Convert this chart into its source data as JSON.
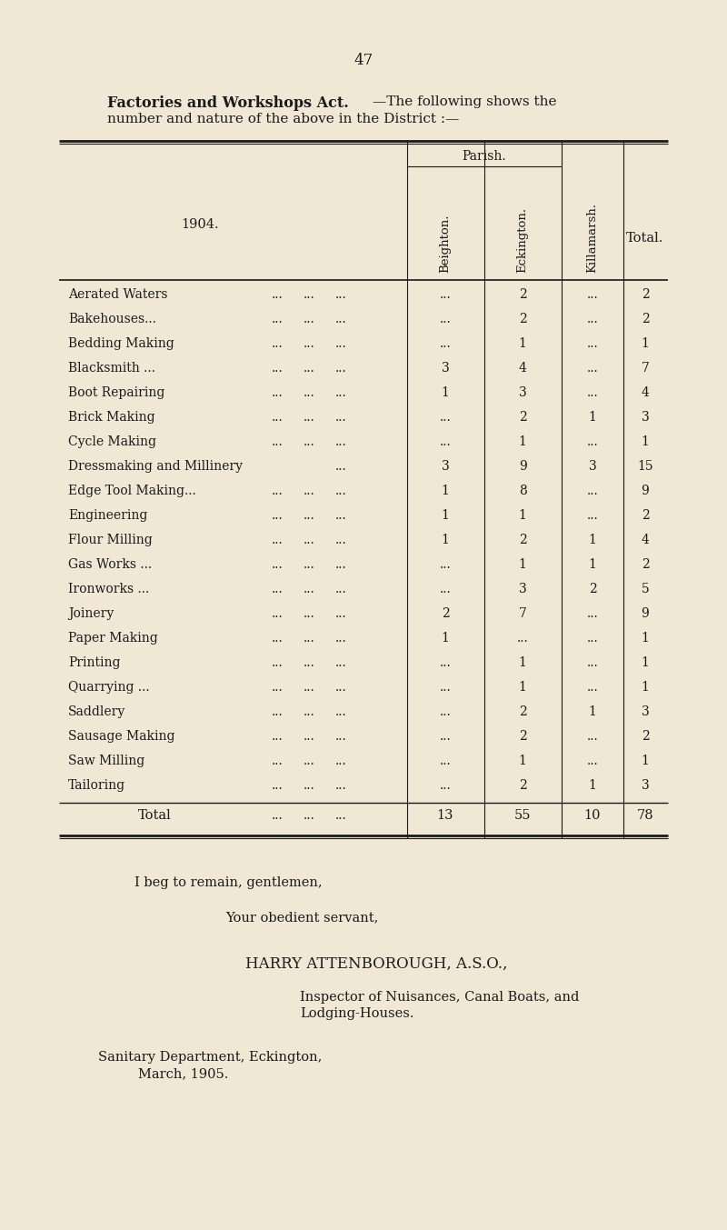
{
  "page_number": "47",
  "bg_color": "#f0e8d5",
  "text_color": "#1a1a1a",
  "title_bold": "Factories and Workshops Act.",
  "title_normal_1": "—The following shows the",
  "title_normal_2": "number and nature of the above in the District :—",
  "year_label": "1904.",
  "parish_label": "Parish.",
  "col_headers": [
    "Beighton.",
    "Eckington.",
    "Killamarsh."
  ],
  "total_header": "Total.",
  "rows": [
    {
      "label": "Aerated Waters",
      "dots": "... ... ...",
      "beighton": "",
      "eckington": "2",
      "killamarsh": "",
      "total": "2"
    },
    {
      "label": "Bakehouses...",
      "dots": "... ... ...",
      "beighton": "",
      "eckington": "2",
      "killamarsh": "",
      "total": "2"
    },
    {
      "label": "Bedding Making",
      "dots": "... ... ...",
      "beighton": "",
      "eckington": "1",
      "killamarsh": "",
      "total": "1"
    },
    {
      "label": "Blacksmith ...",
      "dots": "... ... ...",
      "beighton": "3",
      "eckington": "4",
      "killamarsh": "",
      "total": "7"
    },
    {
      "label": "Boot Repairing",
      "dots": "... ... ...",
      "beighton": "1",
      "eckington": "3",
      "killamarsh": "",
      "total": "4"
    },
    {
      "label": "Brick Making",
      "dots": "... ... ...",
      "beighton": "",
      "eckington": "2",
      "killamarsh": "1",
      "total": "3"
    },
    {
      "label": "Cycle Making",
      "dots": "... ... ...",
      "beighton": "",
      "eckington": "1",
      "killamarsh": "",
      "total": "1"
    },
    {
      "label": "Dressmaking and Millinery",
      "dots": "...",
      "beighton": "3",
      "eckington": "9",
      "killamarsh": "3",
      "total": "15"
    },
    {
      "label": "Edge Tool Making...",
      "dots": "... ... ...",
      "beighton": "1",
      "eckington": "8",
      "killamarsh": "",
      "total": "9"
    },
    {
      "label": "Engineering",
      "dots": "... ... ...",
      "beighton": "1",
      "eckington": "1",
      "killamarsh": "",
      "total": "2"
    },
    {
      "label": "Flour Milling",
      "dots": "... ... ...",
      "beighton": "1",
      "eckington": "2",
      "killamarsh": "1",
      "total": "4"
    },
    {
      "label": "Gas Works ...",
      "dots": "... ... ...",
      "beighton": "",
      "eckington": "1",
      "killamarsh": "1",
      "total": "2"
    },
    {
      "label": "Ironworks ...",
      "dots": "... ... ...",
      "beighton": "",
      "eckington": "3",
      "killamarsh": "2",
      "total": "5"
    },
    {
      "label": "Joinery",
      "dots": "... ... ...",
      "beighton": "2",
      "eckington": "7",
      "killamarsh": "",
      "total": "9"
    },
    {
      "label": "Paper Making",
      "dots": "... ... ...",
      "beighton": "1",
      "eckington": "",
      "killamarsh": "",
      "total": "1"
    },
    {
      "label": "Printing",
      "dots": "... ... ...",
      "beighton": "",
      "eckington": "1",
      "killamarsh": "",
      "total": "1"
    },
    {
      "label": "Quarrying ...",
      "dots": "... ... ...",
      "beighton": "",
      "eckington": "1",
      "killamarsh": "",
      "total": "1"
    },
    {
      "label": "Saddlery",
      "dots": "... ... ...",
      "beighton": "",
      "eckington": "2",
      "killamarsh": "1",
      "total": "3"
    },
    {
      "label": "Sausage Making",
      "dots": "... ... ...",
      "beighton": "",
      "eckington": "2",
      "killamarsh": "",
      "total": "2"
    },
    {
      "label": "Saw Milling",
      "dots": "... ... ...",
      "beighton": "",
      "eckington": "1",
      "killamarsh": "",
      "total": "1"
    },
    {
      "label": "Tailoring",
      "dots": "... ... ...",
      "beighton": "",
      "eckington": "2",
      "killamarsh": "1",
      "total": "3"
    }
  ],
  "total_beighton": "13",
  "total_eckington": "55",
  "total_killamarsh": "10",
  "total_total": "78",
  "closing1": "I beg to remain, gentlemen,",
  "closing2": "Your obedient servant,",
  "closing3": "HARRY ATTENBOROUGH, A.S.O.,",
  "closing4a": "Inspector of Nuisances, Canal Boats, and",
  "closing4b": "Lodging-Houses.",
  "closing5a": "Sanitary Department, Eckington,",
  "closing5b": "March, 1905."
}
